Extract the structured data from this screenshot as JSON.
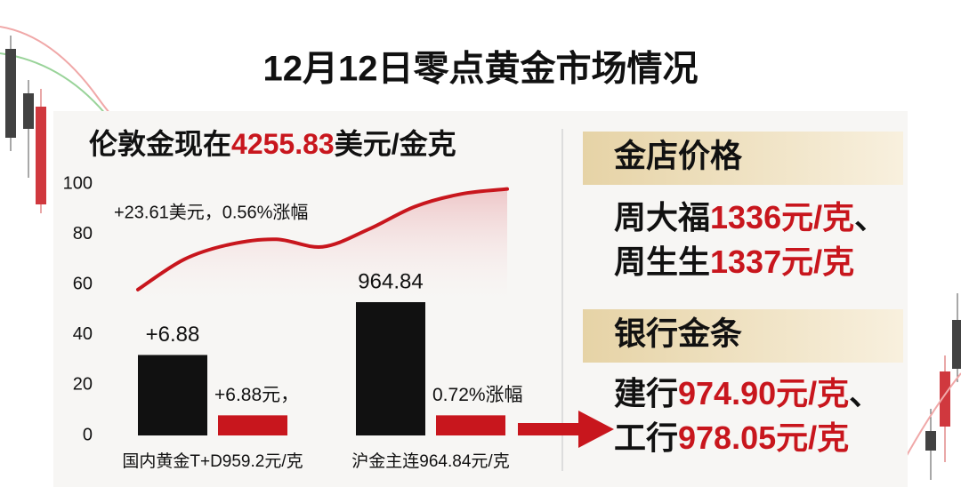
{
  "title": "12月12日零点黄金市场情况",
  "chart_data": {
    "type": "bar",
    "headline": {
      "prefix": "伦敦金现在",
      "price": "4255.83",
      "unit": "美元/金克"
    },
    "annotation": "+23.61美元，0.56%涨幅",
    "categories": [
      "国内黄金T+D959.2元/克",
      "沪金主连964.84元/克"
    ],
    "bars": [
      {
        "color": "#111111",
        "values": [
          32,
          53
        ],
        "labels": [
          "+6.88",
          "964.84"
        ]
      },
      {
        "color": "#c8161d",
        "values": [
          8,
          8
        ],
        "labels": [
          "+6.88元，",
          "0.72%涨幅"
        ]
      }
    ],
    "line": {
      "color": "#c8161d",
      "values": [
        58,
        70,
        76,
        78,
        75,
        82,
        91,
        96,
        98
      ]
    },
    "ylim": [
      0,
      100
    ],
    "yticks": [
      0,
      20,
      40,
      60,
      80,
      100
    ],
    "grid": false
  },
  "shop": {
    "header": "金店价格",
    "rows": [
      {
        "name": "周大福",
        "price": "1336元/克",
        "sep": "、"
      },
      {
        "name": "周生生",
        "price": "1337元/克"
      }
    ]
  },
  "bank": {
    "header": "银行金条",
    "rows": [
      {
        "name": "建行",
        "price": "974.90元/克",
        "sep": "、"
      },
      {
        "name": "工行",
        "price": "978.05元/克"
      }
    ]
  }
}
